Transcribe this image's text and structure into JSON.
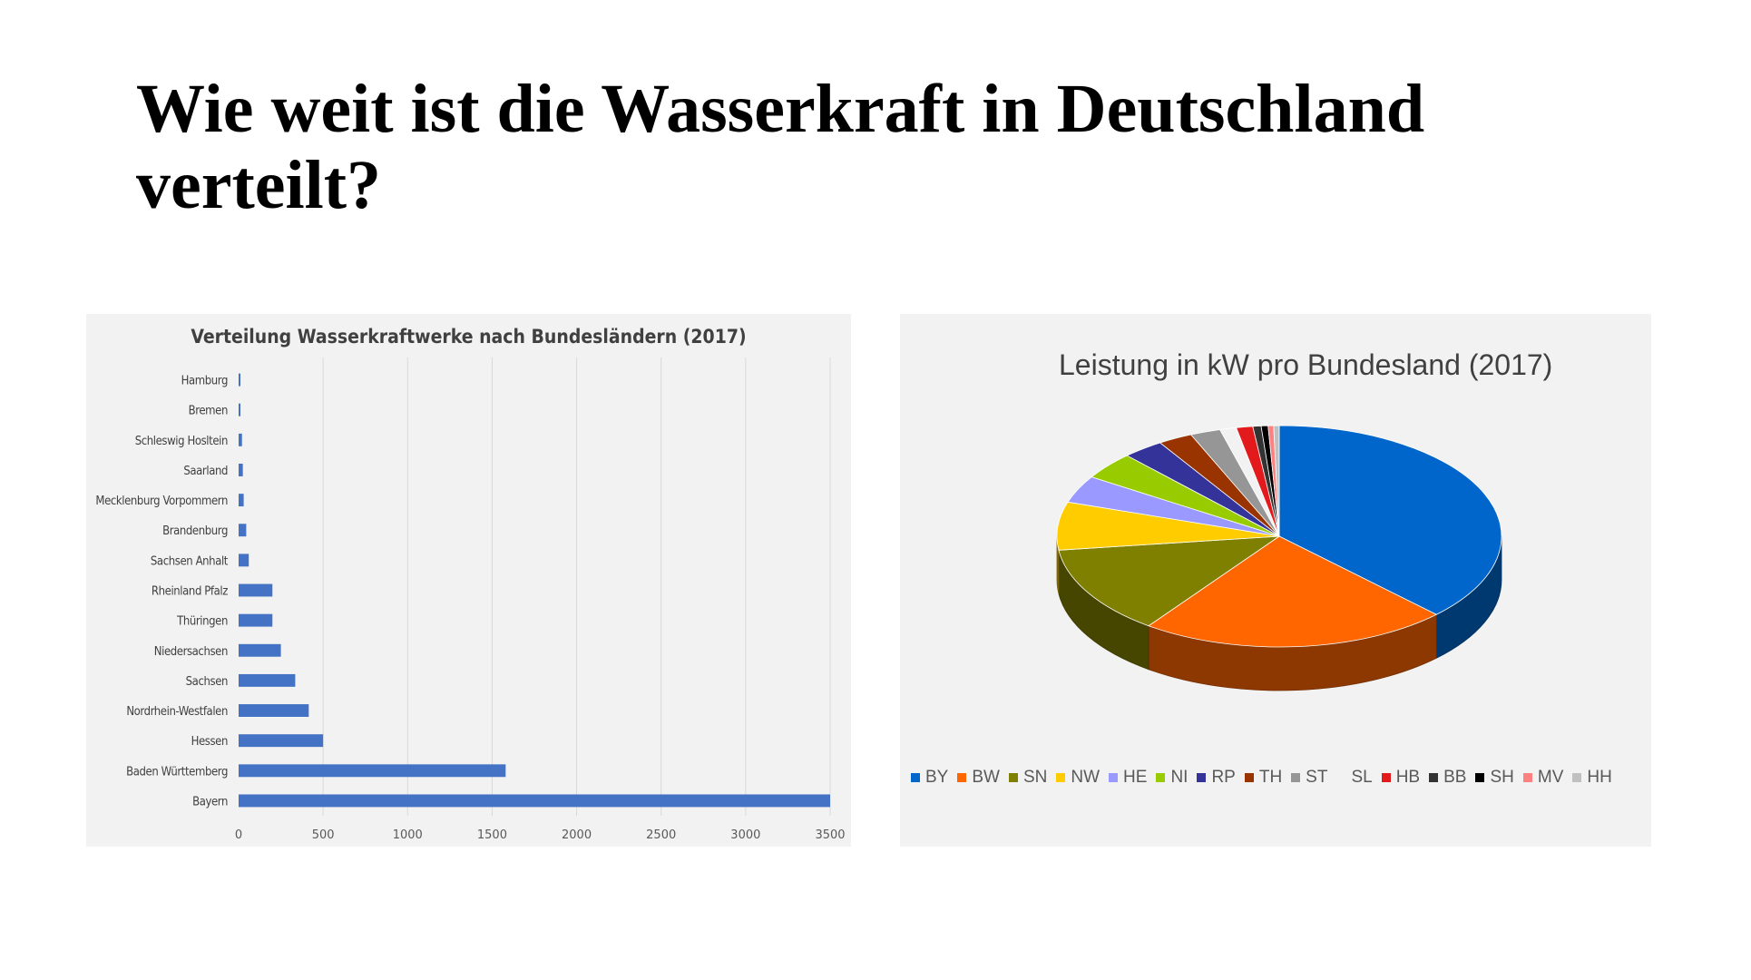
{
  "slide": {
    "title": "Wie weit ist die Wasserkraft in Deutschland verteilt?"
  },
  "chart_data": [
    {
      "type": "bar",
      "orientation": "horizontal",
      "title": "Verteilung Wasserkraftwerke nach Bundesländern (2017)",
      "categories": [
        "Hamburg",
        "Bremen",
        "Schleswig Hosltein",
        "Saarland",
        "Mecklenburg Vorpommern",
        "Brandenburg",
        "Sachsen Anhalt",
        "Rheinland Pfalz",
        "Thüringen",
        "Niedersachsen",
        "Sachsen",
        "Nordrhein-Westfalen",
        "Hessen",
        "Baden Württemberg",
        "Bayern"
      ],
      "values": [
        5,
        8,
        20,
        25,
        30,
        45,
        60,
        200,
        200,
        250,
        335,
        415,
        500,
        1580,
        3500
      ],
      "xlim": [
        0,
        3500
      ],
      "xticks": [
        0,
        500,
        1000,
        1500,
        2000,
        2500,
        3000,
        3500
      ],
      "xtick_labels": [
        "0",
        "500",
        "1000",
        "1500",
        "2000",
        "2500",
        "3000",
        "3500"
      ],
      "grid": true,
      "color": "#4472c4"
    },
    {
      "type": "pie",
      "style": "3d",
      "title": "Leistung in kW pro Bundesland (2017)",
      "legend_position": "bottom",
      "labels": [
        "BY",
        "BW",
        "SN",
        "NW",
        "HE",
        "NI",
        "RP",
        "TH",
        "ST",
        "SL",
        "HB",
        "BB",
        "SH",
        "MV",
        "HH"
      ],
      "values": [
        37.5,
        22.5,
        13.0,
        7.0,
        4.0,
        4.0,
        3.0,
        2.5,
        2.2,
        1.2,
        1.2,
        0.6,
        0.5,
        0.4,
        0.4
      ],
      "colors": [
        "#0066cc",
        "#ff6600",
        "#808000",
        "#ffcc00",
        "#9999ff",
        "#99cc00",
        "#333399",
        "#993300",
        "#969696",
        "#f2f2f2",
        "#e31a1c",
        "#333333",
        "#000000",
        "#ff8080",
        "#c0c0c0"
      ]
    }
  ]
}
